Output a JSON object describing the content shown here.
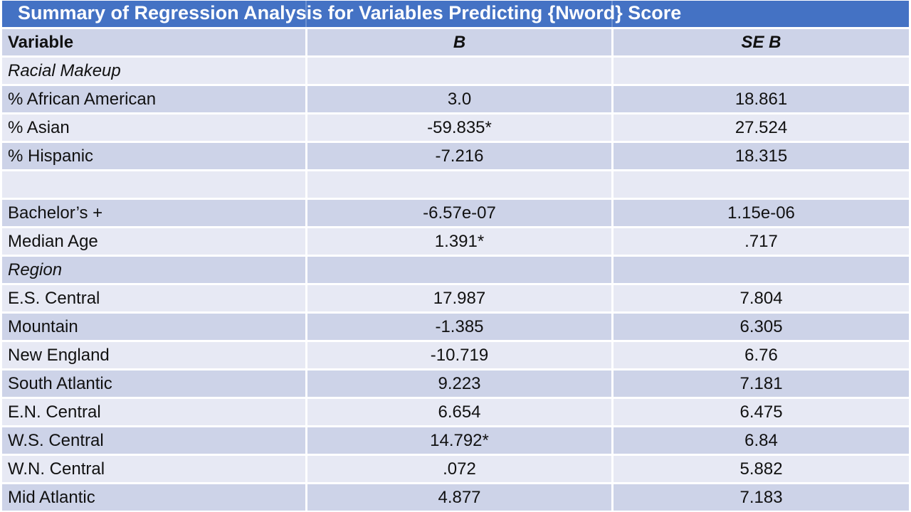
{
  "title_bar": {
    "text": "Summary of Regression Analysis for Variables Predicting {Nword} Score"
  },
  "colors": {
    "title_bg": "#4472c4",
    "title_text": "#ffffff",
    "band_dark": "#cdd3e8",
    "band_light": "#e7e9f4",
    "body_text": "#111111",
    "gridline": "#ffffff"
  },
  "chart_data": {
    "type": "table",
    "title": "Summary of Regression Analysis for Variables Predicting {Nword} Score",
    "columns": [
      "Variable",
      "B",
      "SE B"
    ],
    "rows": [
      {
        "variable": "Racial Makeup",
        "b": "",
        "se_b": "",
        "kind": "section"
      },
      {
        "variable": "% African American",
        "b": "3.0",
        "se_b": "18.861",
        "kind": "data"
      },
      {
        "variable": "% Asian",
        "b": "-59.835*",
        "se_b": "27.524",
        "kind": "data"
      },
      {
        "variable": "% Hispanic",
        "b": "-7.216",
        "se_b": "18.315",
        "kind": "data"
      },
      {
        "variable": "",
        "b": "",
        "se_b": "",
        "kind": "spacer"
      },
      {
        "variable": "Bachelor’s +",
        "b": "-6.57e-07",
        "se_b": "1.15e-06",
        "kind": "data"
      },
      {
        "variable": "Median Age",
        "b": "1.391*",
        "se_b": ".717",
        "kind": "data"
      },
      {
        "variable": "Region",
        "b": "",
        "se_b": "",
        "kind": "section"
      },
      {
        "variable": "E.S. Central",
        "b": "17.987",
        "se_b": "7.804",
        "kind": "data"
      },
      {
        "variable": "Mountain",
        "b": "-1.385",
        "se_b": "6.305",
        "kind": "data"
      },
      {
        "variable": "New England",
        "b": "-10.719",
        "se_b": "6.76",
        "kind": "data"
      },
      {
        "variable": "South Atlantic",
        "b": "9.223",
        "se_b": "7.181",
        "kind": "data"
      },
      {
        "variable": "E.N. Central",
        "b": "6.654",
        "se_b": "6.475",
        "kind": "data"
      },
      {
        "variable": "W.S. Central",
        "b": "14.792*",
        "se_b": "6.84",
        "kind": "data"
      },
      {
        "variable": "W.N. Central",
        "b": ".072",
        "se_b": "5.882",
        "kind": "data"
      },
      {
        "variable": "Mid Atlantic",
        "b": "4.877",
        "se_b": "7.183",
        "kind": "data"
      }
    ]
  }
}
